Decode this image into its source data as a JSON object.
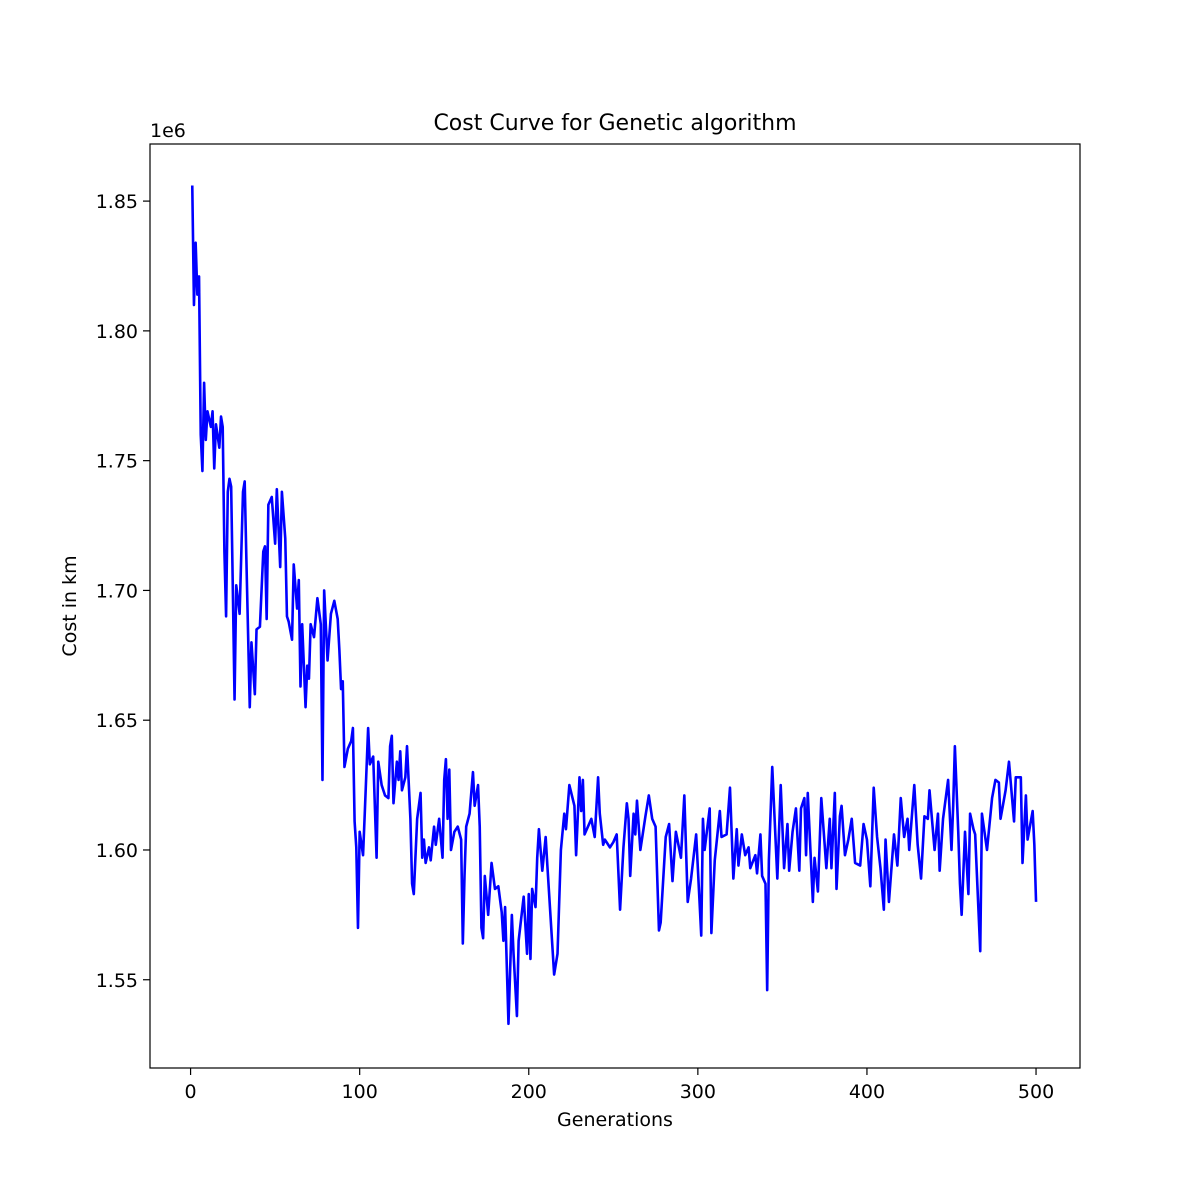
{
  "chart_data": {
    "type": "line",
    "title": "Cost Curve for Genetic algorithm",
    "x_label": "Generations",
    "y_label": "Cost in km",
    "y_offset_label": "1e6",
    "xlim": [
      -24,
      526
    ],
    "ylim": [
      1.516,
      1.872
    ],
    "xticks": [
      0,
      100,
      200,
      300,
      400,
      500
    ],
    "yticks": [
      {
        "value": 1.55,
        "label": "1.55"
      },
      {
        "value": 1.6,
        "label": "1.60"
      },
      {
        "value": 1.65,
        "label": "1.65"
      },
      {
        "value": 1.7,
        "label": "1.70"
      },
      {
        "value": 1.75,
        "label": "1.75"
      },
      {
        "value": 1.8,
        "label": "1.80"
      },
      {
        "value": 1.85,
        "label": "1.85"
      }
    ],
    "grid": false,
    "series": [
      {
        "color": "#0000ff",
        "x": [
          1,
          2,
          3,
          4,
          5,
          6,
          7,
          8,
          9,
          10,
          12,
          13,
          14,
          15,
          17,
          18,
          19,
          20,
          21,
          22,
          23,
          24,
          25,
          26,
          27,
          29,
          31,
          32,
          33,
          35,
          36,
          38,
          39,
          41,
          43,
          44,
          45,
          46,
          48,
          50,
          51,
          53,
          54,
          56,
          57,
          58,
          60,
          61,
          63,
          64,
          65,
          66,
          68,
          69,
          70,
          71,
          73,
          75,
          77,
          78,
          79,
          81,
          83,
          85,
          87,
          88,
          89,
          90,
          91,
          93,
          95,
          96,
          97,
          98,
          99,
          100,
          102,
          103,
          105,
          106,
          108,
          110,
          111,
          113,
          115,
          117,
          118,
          119,
          120,
          122,
          123,
          124,
          125,
          127,
          128,
          130,
          131,
          132,
          134,
          136,
          137,
          138,
          139,
          141,
          142,
          144,
          145,
          147,
          149,
          150,
          151,
          152,
          153,
          154,
          156,
          158,
          160,
          161,
          162,
          163,
          165,
          167,
          168,
          170,
          171,
          172,
          173,
          174,
          176,
          178,
          180,
          182,
          184,
          185,
          186,
          188,
          190,
          191,
          193,
          194,
          197,
          199,
          200,
          201,
          202,
          204,
          205,
          206,
          208,
          210,
          211,
          215,
          217,
          219,
          221,
          222,
          224,
          227,
          228,
          230,
          231,
          232,
          233,
          235,
          237,
          239,
          241,
          242,
          244,
          245,
          248,
          250,
          252,
          254,
          256,
          258,
          259,
          260,
          262,
          263,
          264,
          266,
          269,
          271,
          273,
          275,
          277,
          278,
          281,
          283,
          285,
          287,
          290,
          292,
          294,
          296,
          299,
          302,
          303,
          304,
          307,
          308,
          310,
          313,
          314,
          317,
          319,
          321,
          323,
          324,
          326,
          328,
          330,
          331,
          334,
          335,
          337,
          338,
          340,
          341,
          342,
          344,
          347,
          348,
          349,
          351,
          353,
          354,
          356,
          358,
          360,
          361,
          363,
          364,
          365,
          368,
          369,
          371,
          373,
          374,
          376,
          378,
          379,
          381,
          382,
          384,
          385,
          387,
          389,
          391,
          393,
          396,
          398,
          400,
          402,
          404,
          406,
          408,
          410,
          411,
          413,
          416,
          418,
          420,
          422,
          424,
          425,
          428,
          430,
          432,
          434,
          436,
          437,
          440,
          442,
          443,
          445,
          447,
          448,
          450,
          451,
          452,
          454,
          455,
          456,
          458,
          460,
          461,
          463,
          464,
          467,
          468,
          471,
          474,
          476,
          478,
          479,
          482,
          484,
          487,
          488,
          491,
          492,
          494,
          495,
          498,
          499,
          500
        ],
        "values": [
          1.856,
          1.81,
          1.834,
          1.814,
          1.821,
          1.76,
          1.746,
          1.78,
          1.758,
          1.769,
          1.763,
          1.769,
          1.747,
          1.764,
          1.755,
          1.767,
          1.763,
          1.715,
          1.69,
          1.738,
          1.743,
          1.74,
          1.7,
          1.658,
          1.702,
          1.691,
          1.738,
          1.742,
          1.712,
          1.655,
          1.68,
          1.66,
          1.685,
          1.686,
          1.715,
          1.717,
          1.689,
          1.733,
          1.736,
          1.718,
          1.739,
          1.709,
          1.738,
          1.72,
          1.69,
          1.688,
          1.681,
          1.71,
          1.693,
          1.704,
          1.663,
          1.687,
          1.655,
          1.671,
          1.666,
          1.687,
          1.682,
          1.697,
          1.687,
          1.627,
          1.7,
          1.673,
          1.691,
          1.696,
          1.689,
          1.677,
          1.662,
          1.665,
          1.632,
          1.639,
          1.642,
          1.647,
          1.611,
          1.601,
          1.57,
          1.607,
          1.598,
          1.614,
          1.647,
          1.633,
          1.636,
          1.597,
          1.634,
          1.625,
          1.621,
          1.62,
          1.64,
          1.644,
          1.618,
          1.634,
          1.627,
          1.638,
          1.623,
          1.628,
          1.64,
          1.612,
          1.587,
          1.583,
          1.612,
          1.622,
          1.597,
          1.604,
          1.595,
          1.601,
          1.596,
          1.609,
          1.602,
          1.612,
          1.597,
          1.627,
          1.635,
          1.612,
          1.631,
          1.6,
          1.607,
          1.609,
          1.604,
          1.564,
          1.59,
          1.609,
          1.614,
          1.63,
          1.617,
          1.625,
          1.609,
          1.57,
          1.566,
          1.59,
          1.575,
          1.595,
          1.585,
          1.586,
          1.576,
          1.565,
          1.578,
          1.533,
          1.575,
          1.56,
          1.536,
          1.565,
          1.582,
          1.56,
          1.583,
          1.558,
          1.585,
          1.578,
          1.597,
          1.608,
          1.592,
          1.605,
          1.594,
          1.552,
          1.56,
          1.6,
          1.614,
          1.608,
          1.625,
          1.617,
          1.598,
          1.628,
          1.615,
          1.627,
          1.606,
          1.609,
          1.612,
          1.605,
          1.628,
          1.614,
          1.602,
          1.604,
          1.601,
          1.603,
          1.606,
          1.577,
          1.601,
          1.618,
          1.612,
          1.59,
          1.614,
          1.606,
          1.619,
          1.6,
          1.613,
          1.621,
          1.612,
          1.609,
          1.569,
          1.572,
          1.605,
          1.61,
          1.588,
          1.607,
          1.597,
          1.621,
          1.58,
          1.589,
          1.606,
          1.567,
          1.612,
          1.6,
          1.616,
          1.568,
          1.596,
          1.615,
          1.605,
          1.606,
          1.624,
          1.589,
          1.608,
          1.594,
          1.606,
          1.598,
          1.601,
          1.593,
          1.598,
          1.591,
          1.606,
          1.59,
          1.587,
          1.546,
          1.596,
          1.632,
          1.589,
          1.607,
          1.625,
          1.593,
          1.61,
          1.592,
          1.607,
          1.616,
          1.592,
          1.616,
          1.62,
          1.598,
          1.622,
          1.58,
          1.597,
          1.584,
          1.62,
          1.611,
          1.593,
          1.612,
          1.593,
          1.622,
          1.585,
          1.613,
          1.617,
          1.598,
          1.604,
          1.612,
          1.595,
          1.594,
          1.61,
          1.604,
          1.586,
          1.624,
          1.605,
          1.593,
          1.577,
          1.604,
          1.58,
          1.606,
          1.594,
          1.62,
          1.605,
          1.612,
          1.6,
          1.625,
          1.602,
          1.589,
          1.613,
          1.612,
          1.623,
          1.6,
          1.614,
          1.592,
          1.612,
          1.622,
          1.627,
          1.6,
          1.617,
          1.64,
          1.607,
          1.587,
          1.575,
          1.607,
          1.583,
          1.614,
          1.608,
          1.606,
          1.561,
          1.614,
          1.6,
          1.62,
          1.627,
          1.626,
          1.612,
          1.623,
          1.634,
          1.611,
          1.628,
          1.628,
          1.595,
          1.621,
          1.604,
          1.615,
          1.602,
          1.58
        ]
      }
    ]
  }
}
